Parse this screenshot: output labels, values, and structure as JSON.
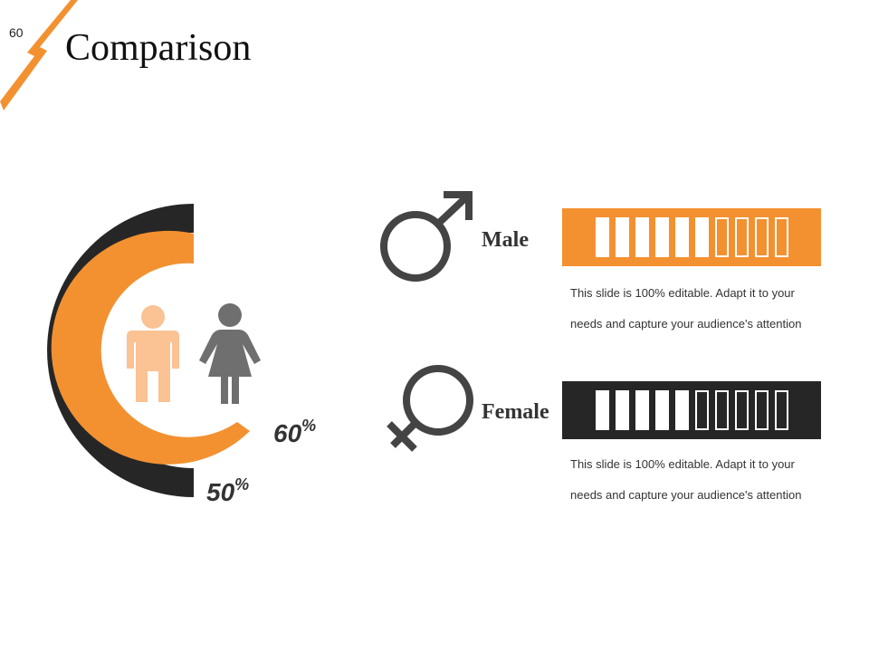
{
  "slide": {
    "number": "60",
    "title": "Comparison"
  },
  "colors": {
    "orange": "#f39131",
    "dark": "#262626",
    "grey": "#6f6f6f",
    "skin": "#fbc294",
    "symbol": "#444444"
  },
  "donut": {
    "outer_percent": {
      "value": "50",
      "symbol": "%"
    },
    "inner_percent": {
      "value": "60",
      "symbol": "%"
    }
  },
  "icons": {
    "male_figure": "male-person-icon",
    "female_figure": "female-person-icon",
    "male_symbol": "male-symbol-icon",
    "female_symbol": "female-symbol-icon"
  },
  "rows": [
    {
      "label": "Male",
      "bar_color": "#f39131",
      "filled_units": 6,
      "total_units": 10,
      "desc_line1": "This slide is 100% editable. Adapt it to your",
      "desc_line2": "needs and capture your audience's attention"
    },
    {
      "label": "Female",
      "bar_color": "#262626",
      "filled_units": 5,
      "total_units": 10,
      "desc_line1": "This slide is 100% editable. Adapt it to your",
      "desc_line2": "needs and capture your audience's attention"
    }
  ]
}
